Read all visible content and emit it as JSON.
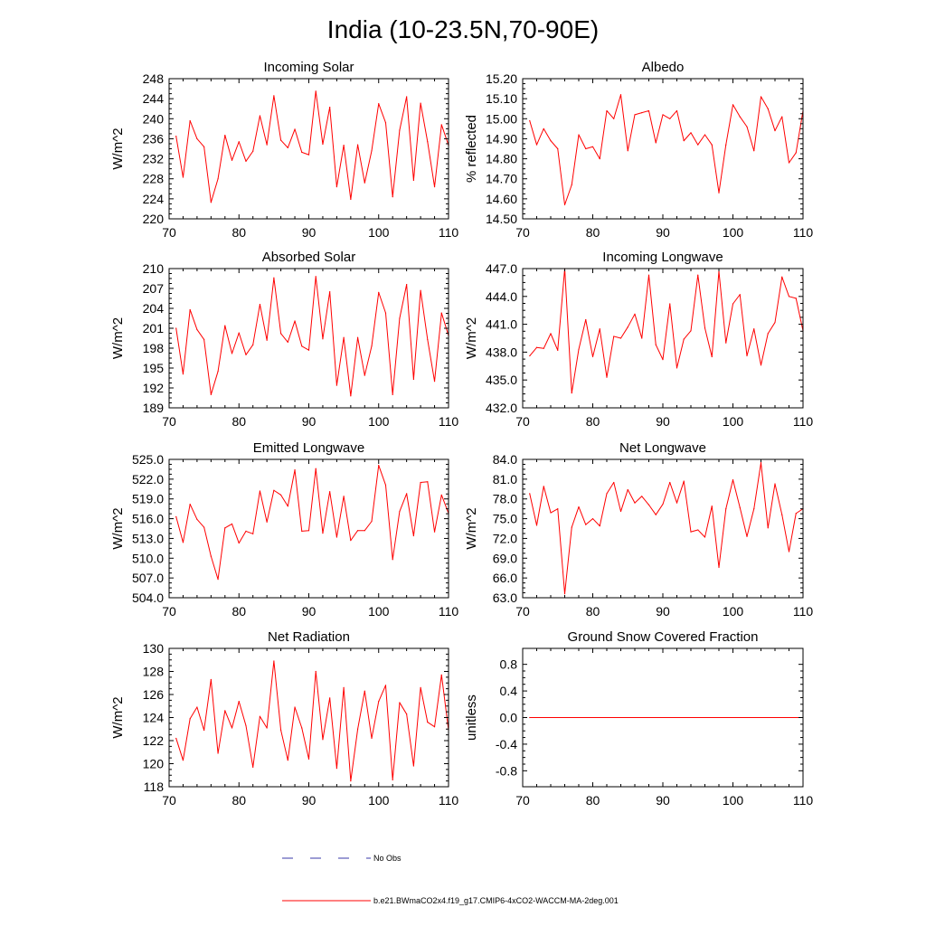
{
  "figure_title": "India (10-23.5N,70-90E)",
  "legend": [
    {
      "label": "No Obs",
      "color": "#3a3aa8",
      "style": "dashed"
    },
    {
      "label": "b.e21.BWmaCO2x4.f19_g17.CMIP6-4xCO2-WACCM-MA-2deg.001",
      "color": "#ff0000",
      "style": "solid"
    }
  ],
  "chart_data": [
    {
      "type": "line",
      "title": "Incoming Solar",
      "ylabel": "W/m^2",
      "xlabel": "",
      "xlim": [
        70,
        110
      ],
      "ylim": [
        220,
        248
      ],
      "xticks": [
        70,
        80,
        90,
        100,
        110
      ],
      "yticks": [
        220,
        224,
        228,
        232,
        236,
        240,
        244,
        248
      ],
      "ytick_labels": [
        "220",
        "224",
        "228",
        "232",
        "236",
        "240",
        "244",
        "248"
      ],
      "series": [
        {
          "name": "b.e21.BWmaCO2x4.f19_g17.CMIP6-4xCO2-WACCM-MA-2deg.001",
          "color": "#ff0000",
          "x": [
            71,
            72,
            73,
            74,
            75,
            76,
            77,
            78,
            79,
            80,
            81,
            82,
            83,
            84,
            85,
            86,
            87,
            88,
            89,
            90,
            91,
            92,
            93,
            94,
            95,
            96,
            97,
            98,
            99,
            100,
            101,
            102,
            103,
            104,
            105,
            106,
            107,
            108,
            109,
            110
          ],
          "y": [
            236.5,
            228.3,
            239.6,
            236.0,
            234.4,
            223.3,
            228.0,
            236.7,
            231.7,
            235.4,
            231.5,
            233.5,
            240.6,
            234.8,
            244.6,
            235.7,
            234.2,
            237.9,
            233.3,
            232.8,
            245.5,
            234.9,
            242.3,
            226.4,
            234.7,
            223.9,
            234.8,
            227.2,
            233.6,
            243.0,
            239.2,
            224.4,
            237.7,
            244.4,
            227.7,
            243.1,
            235.4,
            226.4,
            238.8,
            234.7
          ]
        }
      ]
    },
    {
      "type": "line",
      "title": "Albedo",
      "ylabel": "% reflected",
      "xlabel": "",
      "xlim": [
        70,
        110
      ],
      "ylim": [
        14.5,
        15.2
      ],
      "xticks": [
        70,
        80,
        90,
        100,
        110
      ],
      "yticks": [
        14.5,
        14.6,
        14.7,
        14.8,
        14.9,
        15.0,
        15.1,
        15.2
      ],
      "ytick_labels": [
        "14.50",
        "14.60",
        "14.70",
        "14.80",
        "14.90",
        "15.00",
        "15.10",
        "15.20"
      ],
      "series": [
        {
          "name": "b.e21.BWmaCO2x4.f19_g17.CMIP6-4xCO2-WACCM-MA-2deg.001",
          "color": "#ff0000",
          "x": [
            71,
            72,
            73,
            74,
            75,
            76,
            77,
            78,
            79,
            80,
            81,
            82,
            83,
            84,
            85,
            86,
            87,
            88,
            89,
            90,
            91,
            92,
            93,
            94,
            95,
            96,
            97,
            98,
            99,
            100,
            101,
            102,
            103,
            104,
            105,
            106,
            107,
            108,
            109,
            110
          ],
          "y": [
            14.99,
            14.87,
            14.95,
            14.89,
            14.85,
            14.57,
            14.67,
            14.92,
            14.85,
            14.86,
            14.8,
            15.04,
            15.0,
            15.12,
            14.84,
            15.02,
            15.03,
            15.04,
            14.88,
            15.02,
            15.0,
            15.04,
            14.89,
            14.93,
            14.87,
            14.92,
            14.87,
            14.63,
            14.87,
            15.07,
            15.01,
            14.96,
            14.84,
            15.11,
            15.05,
            14.94,
            15.01,
            14.78,
            14.83,
            15.04
          ]
        }
      ]
    },
    {
      "type": "line",
      "title": "Absorbed Solar",
      "ylabel": "W/m^2",
      "xlabel": "",
      "xlim": [
        70,
        110
      ],
      "ylim": [
        189,
        210
      ],
      "xticks": [
        70,
        80,
        90,
        100,
        110
      ],
      "yticks": [
        189,
        192,
        195,
        198,
        201,
        204,
        207,
        210
      ],
      "ytick_labels": [
        "189",
        "192",
        "195",
        "198",
        "201",
        "204",
        "207",
        "210"
      ],
      "series": [
        {
          "name": "b.e21.BWmaCO2x4.f19_g17.CMIP6-4xCO2-WACCM-MA-2deg.001",
          "color": "#ff0000",
          "x": [
            71,
            72,
            73,
            74,
            75,
            76,
            77,
            78,
            79,
            80,
            81,
            82,
            83,
            84,
            85,
            86,
            87,
            88,
            89,
            90,
            91,
            92,
            93,
            94,
            95,
            96,
            97,
            98,
            99,
            100,
            101,
            102,
            103,
            104,
            105,
            106,
            107,
            108,
            109,
            110
          ],
          "y": [
            201.0,
            194.1,
            203.8,
            200.8,
            199.3,
            191.0,
            194.5,
            201.4,
            197.2,
            200.3,
            197.0,
            198.5,
            204.6,
            199.2,
            208.6,
            200.2,
            198.9,
            202.1,
            198.3,
            197.7,
            208.8,
            199.4,
            206.5,
            192.4,
            199.6,
            190.8,
            199.6,
            193.9,
            198.3,
            206.4,
            203.3,
            191.0,
            202.5,
            207.6,
            193.3,
            206.7,
            199.3,
            193.0,
            203.3,
            199.9
          ]
        }
      ]
    },
    {
      "type": "line",
      "title": "Incoming Longwave",
      "ylabel": "W/m^2",
      "xlabel": "",
      "xlim": [
        70,
        110
      ],
      "ylim": [
        432.0,
        447.0
      ],
      "xticks": [
        70,
        80,
        90,
        100,
        110
      ],
      "yticks": [
        432,
        435,
        438,
        441,
        444,
        447
      ],
      "ytick_labels": [
        "432.0",
        "435.0",
        "438.0",
        "441.0",
        "444.0",
        "447.0"
      ],
      "series": [
        {
          "name": "b.e21.BWmaCO2x4.f19_g17.CMIP6-4xCO2-WACCM-MA-2deg.001",
          "color": "#ff0000",
          "x": [
            71,
            72,
            73,
            74,
            75,
            76,
            77,
            78,
            79,
            80,
            81,
            82,
            83,
            84,
            85,
            86,
            87,
            88,
            89,
            90,
            91,
            92,
            93,
            94,
            95,
            96,
            97,
            98,
            99,
            100,
            101,
            102,
            103,
            104,
            105,
            106,
            107,
            108,
            109,
            110
          ],
          "y": [
            437.6,
            438.5,
            438.4,
            440.0,
            438.2,
            447.0,
            433.6,
            438.3,
            441.5,
            437.5,
            440.5,
            435.3,
            439.7,
            439.5,
            440.7,
            442.1,
            439.5,
            446.3,
            438.8,
            437.2,
            443.2,
            436.3,
            439.4,
            440.3,
            446.3,
            440.6,
            437.5,
            446.7,
            439.0,
            443.2,
            444.2,
            437.6,
            440.5,
            436.6,
            440.0,
            441.2,
            446.1,
            444.0,
            443.8,
            440.3
          ]
        }
      ]
    },
    {
      "type": "line",
      "title": "Emitted Longwave",
      "ylabel": "W/m^2",
      "xlabel": "",
      "xlim": [
        70,
        110
      ],
      "ylim": [
        504.0,
        525.0
      ],
      "xticks": [
        70,
        80,
        90,
        100,
        110
      ],
      "yticks": [
        504,
        507,
        510,
        513,
        516,
        519,
        522,
        525
      ],
      "ytick_labels": [
        "504.0",
        "507.0",
        "510.0",
        "513.0",
        "516.0",
        "519.0",
        "522.0",
        "525.0"
      ],
      "series": [
        {
          "name": "b.e21.BWmaCO2x4.f19_g17.CMIP6-4xCO2-WACCM-MA-2deg.001",
          "color": "#ff0000",
          "x": [
            71,
            72,
            73,
            74,
            75,
            76,
            77,
            78,
            79,
            80,
            81,
            82,
            83,
            84,
            85,
            86,
            87,
            88,
            89,
            90,
            91,
            92,
            93,
            94,
            95,
            96,
            97,
            98,
            99,
            100,
            101,
            102,
            103,
            104,
            105,
            106,
            107,
            108,
            109,
            110
          ],
          "y": [
            516.3,
            512.4,
            518.2,
            515.9,
            514.7,
            510.3,
            506.8,
            514.6,
            515.2,
            512.3,
            514.1,
            513.7,
            520.2,
            515.5,
            520.3,
            519.6,
            517.9,
            523.4,
            514.1,
            514.2,
            523.6,
            513.8,
            520.1,
            513.2,
            519.4,
            512.7,
            514.2,
            514.2,
            515.6,
            524.1,
            521.1,
            509.8,
            517.1,
            519.8,
            513.4,
            521.5,
            521.6,
            514.0,
            519.6,
            516.8
          ]
        }
      ]
    },
    {
      "type": "line",
      "title": "Net Longwave",
      "ylabel": "W/m^2",
      "xlabel": "",
      "xlim": [
        70,
        110
      ],
      "ylim": [
        63.0,
        84.0
      ],
      "xticks": [
        70,
        80,
        90,
        100,
        110
      ],
      "yticks": [
        63,
        66,
        69,
        72,
        75,
        78,
        81,
        84
      ],
      "ytick_labels": [
        "63.0",
        "66.0",
        "69.0",
        "72.0",
        "75.0",
        "78.0",
        "81.0",
        "84.0"
      ],
      "series": [
        {
          "name": "b.e21.BWmaCO2x4.f19_g17.CMIP6-4xCO2-WACCM-MA-2deg.001",
          "color": "#ff0000",
          "x": [
            71,
            72,
            73,
            74,
            75,
            76,
            77,
            78,
            79,
            80,
            81,
            82,
            83,
            84,
            85,
            86,
            87,
            88,
            89,
            90,
            91,
            92,
            93,
            94,
            95,
            96,
            97,
            98,
            99,
            100,
            101,
            102,
            103,
            104,
            105,
            106,
            107,
            108,
            109,
            110
          ],
          "y": [
            78.8,
            74.0,
            79.9,
            75.9,
            76.5,
            63.6,
            73.7,
            76.8,
            74.1,
            75.0,
            73.9,
            78.8,
            80.5,
            76.1,
            79.4,
            77.4,
            78.4,
            77.1,
            75.6,
            77.2,
            80.5,
            77.4,
            80.7,
            73.0,
            73.3,
            72.2,
            76.9,
            67.6,
            76.5,
            80.9,
            76.7,
            72.3,
            76.5,
            83.5,
            73.6,
            80.3,
            75.6,
            70.0,
            75.8,
            76.5
          ]
        }
      ]
    },
    {
      "type": "line",
      "title": "Net Radiation",
      "ylabel": "W/m^2",
      "xlabel": "",
      "xlim": [
        70,
        110
      ],
      "ylim": [
        118,
        130
      ],
      "xticks": [
        70,
        80,
        90,
        100,
        110
      ],
      "yticks": [
        118,
        120,
        122,
        124,
        126,
        128,
        130
      ],
      "ytick_labels": [
        "118",
        "120",
        "122",
        "124",
        "126",
        "128",
        "130"
      ],
      "series": [
        {
          "name": "b.e21.BWmaCO2x4.f19_g17.CMIP6-4xCO2-WACCM-MA-2deg.001",
          "color": "#ff0000",
          "x": [
            71,
            72,
            73,
            74,
            75,
            76,
            77,
            78,
            79,
            80,
            81,
            82,
            83,
            84,
            85,
            86,
            87,
            88,
            89,
            90,
            91,
            92,
            93,
            94,
            95,
            96,
            97,
            98,
            99,
            100,
            101,
            102,
            103,
            104,
            105,
            106,
            107,
            108,
            109,
            110
          ],
          "y": [
            122.2,
            120.3,
            123.9,
            124.9,
            122.9,
            127.3,
            120.9,
            124.6,
            123.1,
            125.4,
            123.3,
            119.7,
            124.1,
            123.1,
            128.9,
            122.9,
            120.3,
            124.9,
            123.1,
            120.4,
            128.0,
            122.1,
            125.7,
            119.6,
            126.6,
            118.5,
            123.0,
            126.3,
            122.2,
            125.4,
            126.8,
            118.6,
            125.3,
            124.3,
            119.8,
            126.6,
            123.6,
            123.2,
            127.7,
            122.9
          ]
        }
      ]
    },
    {
      "type": "line",
      "title": "Ground Snow Covered Fraction",
      "ylabel": "unitless",
      "xlabel": "",
      "xlim": [
        70,
        110
      ],
      "ylim": [
        -1.04,
        1.04
      ],
      "xticks": [
        70,
        80,
        90,
        100,
        110
      ],
      "yticks": [
        -0.8,
        -0.4,
        0.0,
        0.4,
        0.8
      ],
      "ytick_labels": [
        "-0.8",
        "-0.4",
        "0.0",
        "0.4",
        "0.8"
      ],
      "series": [
        {
          "name": "b.e21.BWmaCO2x4.f19_g17.CMIP6-4xCO2-WACCM-MA-2deg.001",
          "color": "#ff0000",
          "x": [
            71,
            110
          ],
          "y": [
            0.0,
            0.0
          ]
        }
      ]
    }
  ]
}
